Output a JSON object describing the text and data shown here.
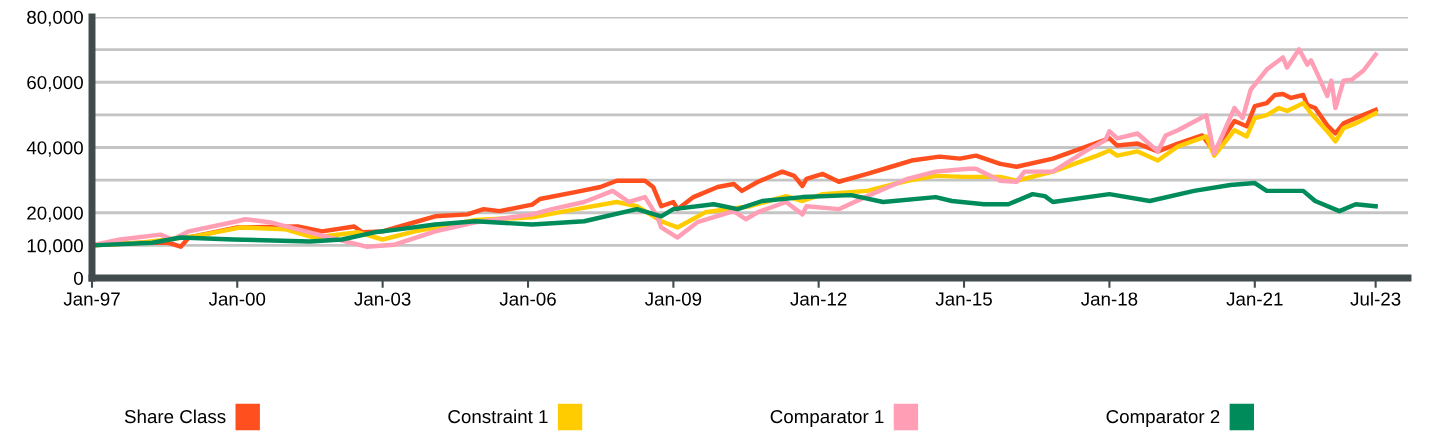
{
  "chart_data": {
    "type": "line",
    "xlim": [
      "1997-01",
      "2024-03"
    ],
    "xticks": [
      {
        "value": "1997-01",
        "label": "Jan-97"
      },
      {
        "value": "2000-01",
        "label": "Jan-00"
      },
      {
        "value": "2003-01",
        "label": "Jan-03"
      },
      {
        "value": "2006-01",
        "label": "Jan-06"
      },
      {
        "value": "2009-01",
        "label": "Jan-09"
      },
      {
        "value": "2012-01",
        "label": "Jan-12"
      },
      {
        "value": "2015-01",
        "label": "Jan-15"
      },
      {
        "value": "2018-01",
        "label": "Jan-18"
      },
      {
        "value": "2021-01",
        "label": "Jan-21"
      },
      {
        "value": "2023-07",
        "label": "Jul-23"
      }
    ],
    "ylim": [
      0,
      80000
    ],
    "yticks": [
      0,
      {
        "value": 10000,
        "label": "10,000"
      },
      {
        "value": 20000,
        "label": "20,000"
      },
      {
        "value": 30000,
        "label": null
      },
      {
        "value": 40000,
        "label": "40,000"
      },
      {
        "value": 50000,
        "label": null
      },
      {
        "value": 60000,
        "label": "60,000"
      },
      {
        "value": 70000,
        "label": null
      },
      {
        "value": 80000,
        "label": "80,000"
      }
    ],
    "grid": "y",
    "legend": "bottom",
    "series": [
      {
        "name": "Share Class",
        "color": "#ff4f1f",
        "x": [
          "1997-01",
          "1998-01",
          "1998-08",
          "1998-11",
          "1999-01",
          "2000-01",
          "2001-04",
          "2001-10",
          "2002-06",
          "2002-08",
          "2003-01",
          "2003-07",
          "2004-02",
          "2004-10",
          "2005-02",
          "2005-06",
          "2006-02",
          "2006-04",
          "2007-01",
          "2007-07",
          "2007-11",
          "2008-06",
          "2008-08",
          "2008-10",
          "2009-01",
          "2009-02",
          "2009-06",
          "2009-12",
          "2010-04",
          "2010-06",
          "2010-10",
          "2011-04",
          "2011-07",
          "2011-09",
          "2011-10",
          "2012-02",
          "2012-06",
          "2013-01",
          "2013-07",
          "2013-12",
          "2014-07",
          "2014-12",
          "2015-04",
          "2015-10",
          "2016-02",
          "2016-11",
          "2017-08",
          "2018-01",
          "2018-03",
          "2018-08",
          "2019-01",
          "2019-06",
          "2019-12",
          "2020-03",
          "2020-08",
          "2020-11",
          "2021-01",
          "2021-04",
          "2021-06",
          "2021-08",
          "2021-10",
          "2022-01",
          "2022-02",
          "2022-04",
          "2022-07",
          "2022-09",
          "2022-11",
          "2023-02",
          "2023-07"
        ],
        "values": [
          10000,
          10800,
          10800,
          9600,
          12400,
          15500,
          15800,
          14300,
          15800,
          14000,
          14300,
          16400,
          18900,
          19500,
          21100,
          20500,
          22500,
          24200,
          26400,
          27900,
          29800,
          29800,
          27900,
          22000,
          23300,
          21100,
          24800,
          27900,
          28800,
          26700,
          29500,
          32600,
          31300,
          28200,
          30400,
          31900,
          29500,
          31900,
          34100,
          36000,
          37200,
          36600,
          37500,
          35000,
          34100,
          36600,
          40600,
          42800,
          40600,
          41200,
          38800,
          41200,
          43700,
          38800,
          48100,
          46500,
          52700,
          53600,
          56100,
          56400,
          55200,
          56100,
          53000,
          52100,
          46800,
          44300,
          47400,
          49000,
          51500
        ]
      },
      {
        "name": "Constraint 1",
        "color": "#ffcc00",
        "x": [
          "1997-01",
          "1998-01",
          "1999-02",
          "2000-02",
          "2001-01",
          "2001-08",
          "2002-07",
          "2003-01",
          "2003-09",
          "2004-12",
          "2006-02",
          "2007-01",
          "2007-11",
          "2008-04",
          "2008-10",
          "2009-02",
          "2009-09",
          "2010-08",
          "2011-05",
          "2011-09",
          "2012-02",
          "2013-01",
          "2013-11",
          "2014-06",
          "2015-01",
          "2015-10",
          "2016-02",
          "2016-11",
          "2017-10",
          "2018-01",
          "2018-03",
          "2018-08",
          "2019-01",
          "2019-06",
          "2020-01",
          "2020-03",
          "2020-08",
          "2020-11",
          "2021-01",
          "2021-04",
          "2021-07",
          "2021-09",
          "2022-01",
          "2022-03",
          "2022-07",
          "2022-09",
          "2022-11",
          "2023-02",
          "2023-07"
        ],
        "values": [
          10000,
          10800,
          12700,
          15500,
          14900,
          12400,
          14000,
          11800,
          14300,
          17800,
          18600,
          21100,
          23300,
          22000,
          17400,
          15500,
          20200,
          22000,
          25100,
          23600,
          25700,
          26700,
          29800,
          31300,
          31000,
          31000,
          29800,
          32600,
          37500,
          39100,
          37500,
          38800,
          36000,
          40300,
          43400,
          37500,
          45300,
          43400,
          49000,
          49900,
          52100,
          51200,
          53600,
          50500,
          45000,
          41900,
          45900,
          47400,
          50500
        ]
      },
      {
        "name": "Comparator 1",
        "color": "#ff9eb5",
        "x": [
          "1997-01",
          "1997-08",
          "1998-06",
          "1998-09",
          "1999-01",
          "2000-01",
          "2000-03",
          "2000-09",
          "2001-04",
          "2001-11",
          "2002-09",
          "2003-04",
          "2004-02",
          "2004-12",
          "2006-02",
          "2006-07",
          "2007-03",
          "2007-10",
          "2008-02",
          "2008-06",
          "2008-09",
          "2008-10",
          "2009-02",
          "2009-07",
          "2010-04",
          "2010-07",
          "2010-10",
          "2011-05",
          "2011-09",
          "2011-10",
          "2012-06",
          "2013-01",
          "2013-11",
          "2014-06",
          "2015-02",
          "2015-04",
          "2015-10",
          "2016-02",
          "2016-04",
          "2016-11",
          "2017-07",
          "2017-12",
          "2018-01",
          "2018-03",
          "2018-08",
          "2019-01",
          "2019-03",
          "2019-06",
          "2020-01",
          "2020-03",
          "2020-08",
          "2020-10",
          "2020-12",
          "2021-04",
          "2021-08",
          "2021-09",
          "2021-12",
          "2022-02",
          "2022-03",
          "2022-05",
          "2022-07",
          "2022-08",
          "2022-09",
          "2022-11",
          "2023-01",
          "2023-04",
          "2023-07"
        ],
        "values": [
          10000,
          11800,
          13300,
          11800,
          14300,
          17400,
          18000,
          17100,
          14900,
          12700,
          9600,
          10200,
          14300,
          17100,
          19500,
          21100,
          23300,
          26700,
          23300,
          24800,
          18900,
          15500,
          12400,
          17100,
          20500,
          18000,
          20200,
          23300,
          19500,
          22000,
          21100,
          25100,
          30400,
          32600,
          33500,
          33500,
          29800,
          29500,
          32600,
          32600,
          38800,
          42200,
          45000,
          42800,
          44300,
          38800,
          43700,
          45300,
          49900,
          38100,
          52100,
          49000,
          57700,
          63900,
          67600,
          64500,
          70100,
          65400,
          66700,
          61400,
          55800,
          60500,
          52100,
          60500,
          60800,
          63600,
          68500
        ]
      },
      {
        "name": "Comparator 2",
        "color": "#008c5a",
        "x": [
          "1997-01",
          "1998-04",
          "1998-11",
          "1999-12",
          "2001-07",
          "2002-03",
          "2002-11",
          "2003-05",
          "2004-02",
          "2004-12",
          "2006-02",
          "2007-03",
          "2008-04",
          "2008-10",
          "2009-01",
          "2009-11",
          "2010-05",
          "2010-11",
          "2011-09",
          "2012-09",
          "2013-05",
          "2014-06",
          "2014-10",
          "2015-06",
          "2015-12",
          "2016-06",
          "2016-09",
          "2016-11",
          "2018-01",
          "2018-11",
          "2019-10",
          "2020-07",
          "2021-01",
          "2021-04",
          "2022-01",
          "2022-04",
          "2022-10",
          "2023-02",
          "2023-07"
        ],
        "values": [
          10000,
          10800,
          12400,
          11800,
          11200,
          11800,
          14000,
          14900,
          16400,
          17400,
          16400,
          17400,
          21100,
          18900,
          21100,
          22600,
          21100,
          23600,
          24800,
          25400,
          23300,
          24800,
          23600,
          22600,
          22600,
          25700,
          25100,
          23300,
          25700,
          23600,
          26700,
          28500,
          29100,
          26700,
          26700,
          23600,
          20500,
          22600,
          22000
        ]
      }
    ]
  }
}
